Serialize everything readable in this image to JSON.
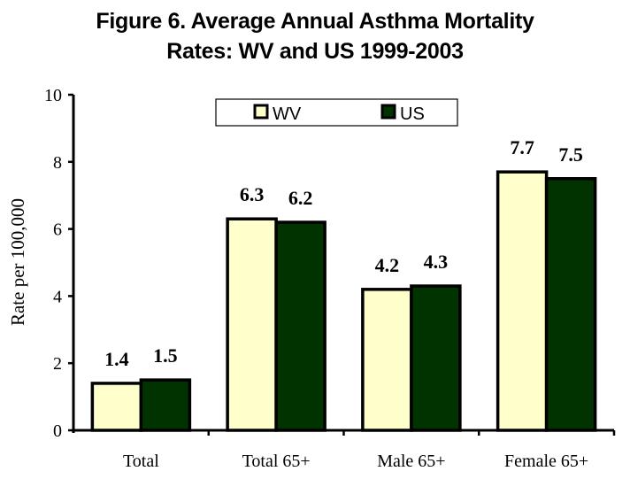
{
  "chart_data": {
    "type": "bar",
    "title_lines": [
      "Figure 6. Average Annual Asthma Mortality",
      "Rates: WV and US 1999-2003"
    ],
    "title": "Figure 6. Average Annual Asthma Mortality Rates: WV and US 1999-2003",
    "xlabel": "",
    "ylabel": "Rate per 100,000",
    "ylim": [
      0,
      10
    ],
    "yticks": [
      0,
      2,
      4,
      6,
      8,
      10
    ],
    "categories": [
      "Total",
      "Total 65+",
      "Male 65+",
      "Female 65+"
    ],
    "series": [
      {
        "name": "WV",
        "values": [
          1.4,
          6.3,
          4.2,
          7.7
        ],
        "color": "#FFFFCC"
      },
      {
        "name": "US",
        "values": [
          1.5,
          6.2,
          4.3,
          7.5
        ],
        "color": "#003300"
      }
    ],
    "data_labels": true,
    "grid": false,
    "legend_position": "top-center"
  }
}
